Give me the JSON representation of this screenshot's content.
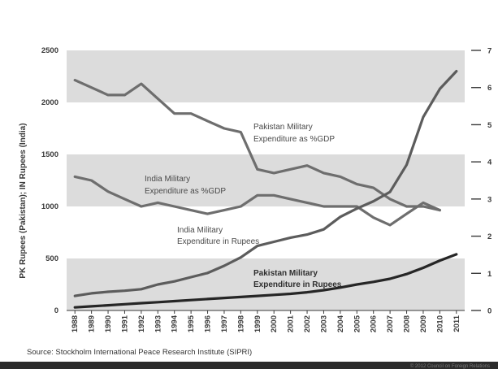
{
  "chart_data": {
    "type": "line",
    "title": "",
    "xlabel": "",
    "ylabel": "PK Rupees (Pakistan); IN Rupees (India)",
    "ylim": [
      0,
      2500
    ],
    "y_ticks": [
      0,
      500,
      1000,
      1500,
      2000,
      2500
    ],
    "y2lim": [
      0,
      7
    ],
    "y2_ticks": [
      0,
      1,
      2,
      3,
      4,
      5,
      6,
      7
    ],
    "categories": [
      "1988",
      "1989",
      "1990",
      "1991",
      "1992",
      "1993",
      "1994",
      "1995",
      "1996",
      "1997",
      "1998",
      "1999",
      "2000",
      "2001",
      "2002",
      "2003",
      "2004",
      "2005",
      "2006",
      "2007",
      "2008",
      "2009",
      "2010",
      "2011"
    ],
    "grid": "alternating horizontal bands",
    "series": [
      {
        "name": "Pakistan Military Expenditure as %GDP",
        "axis": "right",
        "color": "#6e6e6e",
        "values": [
          6.2,
          6.0,
          5.8,
          5.8,
          6.1,
          5.7,
          5.3,
          5.3,
          5.1,
          4.9,
          4.8,
          3.8,
          3.7,
          3.8,
          3.9,
          3.7,
          3.6,
          3.4,
          3.3,
          3.0,
          2.8,
          2.8,
          2.7,
          null
        ]
      },
      {
        "name": "India Military Expenditure as %GDP",
        "axis": "right",
        "color": "#6e6e6e",
        "values": [
          3.6,
          3.5,
          3.2,
          3.0,
          2.8,
          2.9,
          2.8,
          2.7,
          2.6,
          2.7,
          2.8,
          3.1,
          3.1,
          3.0,
          2.9,
          2.8,
          2.8,
          2.8,
          2.5,
          2.3,
          2.6,
          2.9,
          2.7,
          null
        ]
      },
      {
        "name": "India Military Expenditure in Rupees",
        "axis": "left",
        "color": "#5c5c5c",
        "values": [
          140,
          165,
          180,
          190,
          205,
          250,
          280,
          320,
          360,
          430,
          510,
          620,
          660,
          700,
          730,
          780,
          900,
          980,
          1050,
          1140,
          1400,
          1860,
          2130,
          2300
        ]
      },
      {
        "name": "Pakistan Military Expenditure in Rupees",
        "axis": "left",
        "color": "#262626",
        "values": [
          30,
          40,
          50,
          60,
          70,
          80,
          90,
          100,
          110,
          120,
          130,
          140,
          150,
          160,
          175,
          195,
          220,
          250,
          275,
          305,
          350,
          410,
          480,
          540
        ]
      }
    ],
    "annotations": [
      {
        "text": "Pakistan Military",
        "series": 0
      },
      {
        "text": "Expenditure as %GDP",
        "series": 0
      },
      {
        "text": "India Military",
        "series": 1
      },
      {
        "text": "Expenditure as %GDP",
        "series": 1
      },
      {
        "text": "India Military",
        "series": 2
      },
      {
        "text": "Expenditure in Rupees",
        "series": 2
      },
      {
        "text": "Pakistan Military",
        "series": 3
      },
      {
        "text": "Expenditure in Rupees",
        "series": 3
      }
    ],
    "source": "Source: Stockholm International Peace Research Institute (SIPRI)",
    "footer": "© 2012 Council on Foreign Relations"
  }
}
